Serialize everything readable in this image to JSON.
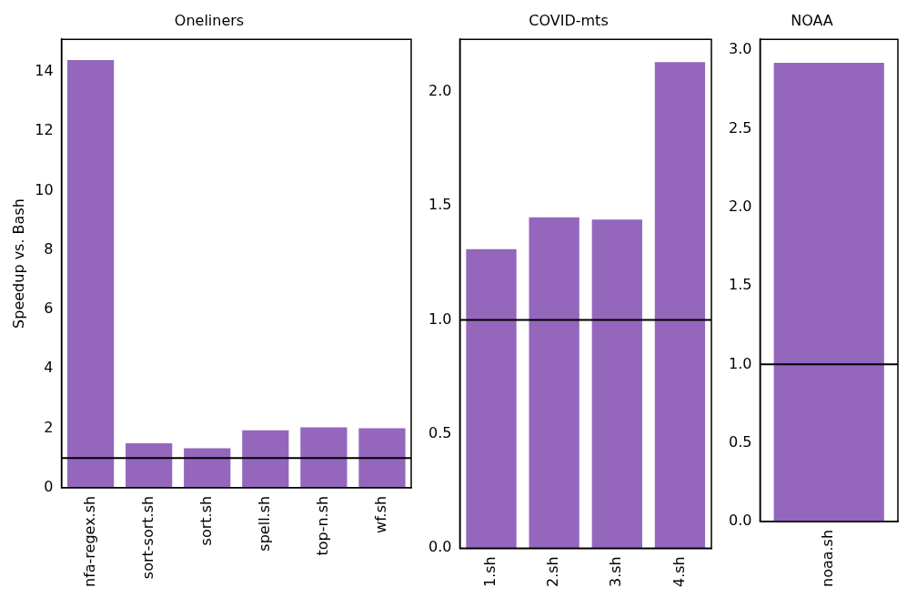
{
  "chart_data": [
    {
      "type": "bar",
      "title": "Oneliners",
      "ylabel": "Speedup vs. Bash",
      "categories": [
        "nfa-regex.sh",
        "sort-sort.sh",
        "sort.sh",
        "spell.sh",
        "top-n.sh",
        "wf.sh"
      ],
      "values": [
        14.4,
        1.5,
        1.33,
        1.93,
        2.03,
        2.0
      ],
      "color": "#9467bd",
      "ylim": [
        0,
        15.1
      ],
      "yticks": [
        0,
        2,
        4,
        6,
        8,
        10,
        12,
        14
      ],
      "grid": false,
      "ref_lines": [
        {
          "axis": "y",
          "value": 1,
          "color": "#000000"
        }
      ]
    },
    {
      "type": "bar",
      "title": "COVID-mts",
      "categories": [
        "1.sh",
        "2.sh",
        "3.sh",
        "4.sh"
      ],
      "values": [
        1.31,
        1.45,
        1.44,
        2.13
      ],
      "color": "#9467bd",
      "ylim": [
        0,
        2.23
      ],
      "yticks": [
        {
          "value": 0,
          "label": "0.0"
        },
        0.5,
        {
          "value": 1,
          "label": "1.0"
        },
        1.5,
        {
          "value": 2,
          "label": "2.0"
        }
      ],
      "grid": false,
      "ref_lines": [
        {
          "axis": "y",
          "value": 1,
          "color": "#000000"
        }
      ]
    },
    {
      "type": "bar",
      "title": "NOAA",
      "categories": [
        "noaa.sh"
      ],
      "values": [
        2.92
      ],
      "color": "#9467bd",
      "ylim": [
        0,
        3.07
      ],
      "yticks": [
        {
          "value": 0,
          "label": "0.0"
        },
        0.5,
        {
          "value": 1,
          "label": "1.0"
        },
        1.5,
        {
          "value": 2,
          "label": "2.0"
        },
        2.5,
        {
          "value": 3,
          "label": "3.0"
        }
      ],
      "grid": false,
      "ref_lines": [
        {
          "axis": "y",
          "value": 1,
          "color": "#000000"
        }
      ]
    }
  ]
}
